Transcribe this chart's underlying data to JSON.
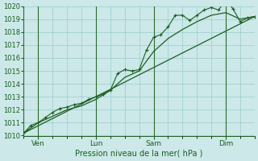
{
  "xlabel": "Pression niveau de la mer( hPa )",
  "background_color": "#cce8e8",
  "grid_color": "#99cccc",
  "line_color": "#1a5e20",
  "vline_color": "#2d6b2d",
  "ylim": [
    1010,
    1020
  ],
  "xlim": [
    0,
    96
  ],
  "yticks": [
    1010,
    1011,
    1012,
    1013,
    1014,
    1015,
    1016,
    1017,
    1018,
    1019,
    1020
  ],
  "day_ticks": [
    {
      "x": 6,
      "label": "Ven"
    },
    {
      "x": 30,
      "label": "Lun"
    },
    {
      "x": 54,
      "label": "Sam"
    },
    {
      "x": 84,
      "label": "Dim"
    }
  ],
  "vlines": [
    6,
    30,
    54,
    84
  ],
  "series1_x": [
    0,
    3,
    6,
    9,
    12,
    15,
    18,
    21,
    24,
    27,
    30,
    33,
    36,
    39,
    42,
    45,
    48,
    51,
    54,
    57,
    60,
    63,
    66,
    69,
    72,
    75,
    78,
    81,
    84,
    87,
    90,
    93,
    96
  ],
  "series1_y": [
    1010.2,
    1010.8,
    1011.0,
    1011.4,
    1011.8,
    1012.1,
    1012.2,
    1012.4,
    1012.5,
    1012.8,
    1013.0,
    1013.2,
    1013.5,
    1014.8,
    1015.1,
    1015.0,
    1015.1,
    1016.6,
    1017.6,
    1017.8,
    1018.4,
    1019.3,
    1019.3,
    1018.9,
    1019.3,
    1019.7,
    1019.9,
    1019.7,
    1020.5,
    1019.8,
    1018.8,
    1019.1,
    1019.2
  ],
  "series2_x": [
    0,
    6,
    12,
    18,
    24,
    30,
    36,
    42,
    48,
    54,
    60,
    66,
    72,
    78,
    84,
    90,
    96
  ],
  "series2_y": [
    1010.2,
    1011.0,
    1011.5,
    1012.0,
    1012.3,
    1012.8,
    1013.5,
    1014.5,
    1015.0,
    1016.5,
    1017.5,
    1018.2,
    1018.8,
    1019.3,
    1019.5,
    1019.0,
    1019.2
  ],
  "trend_x": [
    0,
    96
  ],
  "trend_y": [
    1010.2,
    1019.2
  ]
}
